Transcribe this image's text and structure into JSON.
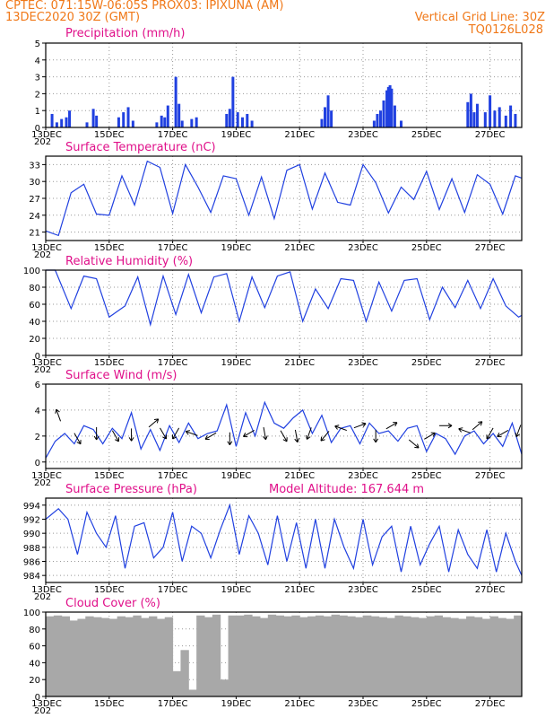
{
  "header": {
    "line1_left": "CPTEC:   071:15W-06:05S   PROX03: IPIXUNA (AM)",
    "line2_left": "13DEC2020 30Z (GMT)",
    "line2_right": "Vertical Grid Line: 30Z",
    "line3_right": "TQ0126L028"
  },
  "x_dates": [
    "13DEC",
    "15DEC",
    "17DEC",
    "19DEC",
    "21DEC",
    "23DEC",
    "25DEC",
    "27DEC"
  ],
  "x_year": "202",
  "colors": {
    "series": "#2040e0",
    "title": "#e0108a",
    "header": "#f07818",
    "bars": "#2040e0",
    "cloud": "#a8a8a8",
    "arrows": "#000000"
  },
  "chart_data": [
    {
      "type": "bar",
      "title": "Precipitation (mm/h)",
      "xlabel": "",
      "ylabel": "",
      "ylim": [
        0,
        5
      ],
      "yticks": [
        0,
        1,
        2,
        3,
        4,
        5
      ],
      "x_range_days": [
        13,
        28
      ],
      "x": [
        13.2,
        13.35,
        13.5,
        13.65,
        13.75,
        14.3,
        14.5,
        14.6,
        15.3,
        15.45,
        15.6,
        15.75,
        16.5,
        16.65,
        16.75,
        16.85,
        17.1,
        17.2,
        17.3,
        17.6,
        17.75,
        18.7,
        18.8,
        18.9,
        19.05,
        19.2,
        19.35,
        19.5,
        21.7,
        21.8,
        21.9,
        22.0,
        23.35,
        23.45,
        23.55,
        23.65,
        23.75,
        23.8,
        23.85,
        23.9,
        24.0,
        24.2,
        26.3,
        26.4,
        26.5,
        26.6,
        26.85,
        27.0,
        27.15,
        27.3,
        27.5,
        27.65,
        27.8
      ],
      "values": [
        0.8,
        0.3,
        0.5,
        0.6,
        1.0,
        0.3,
        1.1,
        0.7,
        0.6,
        0.9,
        1.2,
        0.4,
        0.3,
        0.7,
        0.6,
        1.3,
        3.0,
        1.4,
        0.4,
        0.5,
        0.6,
        0.8,
        1.1,
        3.0,
        0.9,
        0.6,
        0.8,
        0.4,
        0.5,
        1.2,
        1.9,
        1.0,
        0.4,
        0.8,
        1.0,
        1.6,
        2.2,
        2.4,
        2.5,
        2.3,
        1.3,
        0.4,
        1.5,
        2.0,
        0.9,
        1.4,
        0.9,
        1.9,
        1.0,
        1.2,
        0.7,
        1.3,
        0.8
      ]
    },
    {
      "type": "line",
      "title": "Surface Temperature (nC)",
      "xlabel": "",
      "ylabel": "",
      "ylim": [
        19.5,
        34.5
      ],
      "yticks": [
        21,
        24,
        27,
        30,
        33
      ],
      "x_range_days": [
        13,
        28
      ],
      "x": [
        13.0,
        13.4,
        13.8,
        14.2,
        14.6,
        15.0,
        15.4,
        15.8,
        16.2,
        16.6,
        17.0,
        17.4,
        17.8,
        18.2,
        18.6,
        19.0,
        19.4,
        19.8,
        20.2,
        20.6,
        21.0,
        21.4,
        21.8,
        22.2,
        22.6,
        23.0,
        23.4,
        23.8,
        24.2,
        24.6,
        25.0,
        25.4,
        25.8,
        26.2,
        26.6,
        27.0,
        27.4,
        27.8,
        28.0
      ],
      "values": [
        21.2,
        20.4,
        28.0,
        29.5,
        24.2,
        24.0,
        31.0,
        25.8,
        33.6,
        32.5,
        24.3,
        33.0,
        29.0,
        24.5,
        31.0,
        30.5,
        24.0,
        30.8,
        23.4,
        32.0,
        33.0,
        25.1,
        31.5,
        26.3,
        25.8,
        33.0,
        29.8,
        24.4,
        29.0,
        26.8,
        31.8,
        25.0,
        30.5,
        24.5,
        31.2,
        29.5,
        24.2,
        31.0,
        30.6
      ]
    },
    {
      "type": "line",
      "title": "Relative Humidity (%)",
      "xlabel": "",
      "ylabel": "",
      "ylim": [
        0,
        100
      ],
      "yticks": [
        0,
        20,
        40,
        60,
        80,
        100
      ],
      "x_range_days": [
        13,
        28
      ],
      "x": [
        13.0,
        13.3,
        13.8,
        14.2,
        14.6,
        15.0,
        15.5,
        15.9,
        16.3,
        16.7,
        17.1,
        17.5,
        17.9,
        18.3,
        18.7,
        19.1,
        19.5,
        19.9,
        20.3,
        20.7,
        21.1,
        21.5,
        21.9,
        22.3,
        22.7,
        23.1,
        23.5,
        23.9,
        24.3,
        24.7,
        25.1,
        25.5,
        25.9,
        26.3,
        26.7,
        27.1,
        27.5,
        27.9,
        28.0
      ],
      "values": [
        100,
        100,
        55,
        93,
        90,
        45,
        58,
        92,
        36,
        93,
        48,
        95,
        50,
        92,
        96,
        40,
        92,
        56,
        93,
        98,
        40,
        78,
        55,
        90,
        88,
        40,
        86,
        52,
        88,
        90,
        42,
        80,
        56,
        88,
        55,
        90,
        58,
        45,
        47
      ]
    },
    {
      "type": "line",
      "title": "Surface Wind (m/s)",
      "xlabel": "",
      "ylabel": "",
      "ylim": [
        -0.5,
        6
      ],
      "yticks": [
        0,
        2,
        4,
        6
      ],
      "x_range_days": [
        13,
        28
      ],
      "x": [
        13.0,
        13.3,
        13.6,
        13.9,
        14.2,
        14.5,
        14.8,
        15.1,
        15.4,
        15.7,
        16.0,
        16.3,
        16.6,
        16.9,
        17.2,
        17.5,
        17.8,
        18.1,
        18.4,
        18.7,
        19.0,
        19.3,
        19.6,
        19.9,
        20.2,
        20.5,
        20.8,
        21.1,
        21.4,
        21.7,
        22.0,
        22.3,
        22.6,
        22.9,
        23.2,
        23.5,
        23.8,
        24.1,
        24.4,
        24.7,
        25.0,
        25.3,
        25.6,
        25.9,
        26.2,
        26.5,
        26.8,
        27.1,
        27.4,
        27.7,
        28.0
      ],
      "values": [
        0.3,
        1.6,
        2.2,
        1.4,
        2.8,
        2.5,
        1.4,
        2.6,
        1.8,
        3.8,
        1.0,
        2.5,
        0.9,
        2.8,
        1.5,
        3.0,
        1.8,
        2.2,
        2.4,
        4.4,
        1.2,
        3.8,
        2.0,
        4.6,
        3.0,
        2.6,
        3.4,
        4.0,
        2.2,
        3.6,
        1.5,
        2.6,
        2.8,
        1.4,
        3.0,
        2.2,
        2.4,
        1.6,
        2.6,
        2.8,
        0.8,
        2.2,
        1.8,
        0.6,
        2.0,
        2.4,
        1.4,
        2.2,
        1.2,
        3.0,
        0.6
      ],
      "arrows": [
        {
          "x": 13.4,
          "y": 3.6,
          "angle": -110
        },
        {
          "x": 14.0,
          "y": 1.8,
          "angle": 60
        },
        {
          "x": 14.6,
          "y": 2.2,
          "angle": 90
        },
        {
          "x": 15.2,
          "y": 2.0,
          "angle": 60
        },
        {
          "x": 15.7,
          "y": 2.1,
          "angle": 90
        },
        {
          "x": 16.4,
          "y": 3.0,
          "angle": -40
        },
        {
          "x": 16.7,
          "y": 2.2,
          "angle": 60
        },
        {
          "x": 17.1,
          "y": 2.2,
          "angle": 120
        },
        {
          "x": 17.6,
          "y": 2.2,
          "angle": 200
        },
        {
          "x": 18.2,
          "y": 2.0,
          "angle": 150
        },
        {
          "x": 18.8,
          "y": 1.8,
          "angle": 90
        },
        {
          "x": 19.4,
          "y": 2.2,
          "angle": 150
        },
        {
          "x": 19.9,
          "y": 2.2,
          "angle": 80
        },
        {
          "x": 20.5,
          "y": 2.0,
          "angle": 60
        },
        {
          "x": 20.9,
          "y": 2.0,
          "angle": 80
        },
        {
          "x": 21.3,
          "y": 2.2,
          "angle": 110
        },
        {
          "x": 21.8,
          "y": 2.0,
          "angle": 130
        },
        {
          "x": 22.3,
          "y": 2.6,
          "angle": 200
        },
        {
          "x": 22.9,
          "y": 2.8,
          "angle": -20
        },
        {
          "x": 23.4,
          "y": 2.0,
          "angle": 90
        },
        {
          "x": 23.9,
          "y": 2.8,
          "angle": -30
        },
        {
          "x": 24.6,
          "y": 1.4,
          "angle": 40
        },
        {
          "x": 25.1,
          "y": 2.0,
          "angle": -30
        },
        {
          "x": 25.6,
          "y": 2.8,
          "angle": 0
        },
        {
          "x": 26.2,
          "y": 2.4,
          "angle": 200
        },
        {
          "x": 26.6,
          "y": 2.8,
          "angle": -40
        },
        {
          "x": 27.0,
          "y": 2.2,
          "angle": 120
        },
        {
          "x": 27.4,
          "y": 2.2,
          "angle": 150
        },
        {
          "x": 27.9,
          "y": 2.4,
          "angle": 110
        }
      ]
    },
    {
      "type": "line",
      "title": "Surface Pressure (hPa)",
      "annotation": "Model Altitude: 167.644 m",
      "xlabel": "",
      "ylabel": "",
      "ylim": [
        983,
        995
      ],
      "yticks": [
        984,
        986,
        988,
        990,
        992,
        994
      ],
      "x_range_days": [
        13,
        28
      ],
      "x": [
        13.0,
        13.4,
        13.7,
        14.0,
        14.3,
        14.6,
        14.9,
        15.2,
        15.5,
        15.8,
        16.1,
        16.4,
        16.7,
        17.0,
        17.3,
        17.6,
        17.9,
        18.2,
        18.5,
        18.8,
        19.1,
        19.4,
        19.7,
        20.0,
        20.3,
        20.6,
        20.9,
        21.2,
        21.5,
        21.8,
        22.1,
        22.4,
        22.7,
        23.0,
        23.3,
        23.6,
        23.9,
        24.2,
        24.5,
        24.8,
        25.1,
        25.4,
        25.7,
        26.0,
        26.3,
        26.6,
        26.9,
        27.2,
        27.5,
        27.8,
        28.0
      ],
      "values": [
        992,
        993.5,
        992,
        987,
        993,
        990,
        988,
        992.5,
        985,
        991,
        991.5,
        986.5,
        988,
        993,
        986,
        991,
        990,
        986.5,
        990.5,
        994,
        987,
        992.5,
        990,
        985.5,
        992.5,
        986,
        991.5,
        985,
        992,
        985,
        992,
        988,
        985,
        992,
        985.5,
        989.5,
        991,
        984.5,
        991,
        985.5,
        988.5,
        991,
        984.5,
        990.5,
        987,
        985,
        990.5,
        984.5,
        990,
        986,
        984
      ]
    },
    {
      "type": "bar",
      "title": "Cloud Cover (%)",
      "xlabel": "",
      "ylabel": "",
      "ylim": [
        0,
        100
      ],
      "yticks": [
        0,
        20,
        40,
        60,
        80,
        100
      ],
      "x_range_days": [
        13,
        28
      ],
      "x": [
        13.0,
        13.25,
        13.5,
        13.75,
        14.0,
        14.25,
        14.5,
        14.75,
        15.0,
        15.25,
        15.5,
        15.75,
        16.0,
        16.25,
        16.5,
        16.75,
        17.0,
        17.25,
        17.5,
        17.75,
        18.0,
        18.25,
        18.5,
        18.75,
        19.0,
        19.25,
        19.5,
        19.75,
        20.0,
        20.25,
        20.5,
        20.75,
        21.0,
        21.25,
        21.5,
        21.75,
        22.0,
        22.25,
        22.5,
        22.75,
        23.0,
        23.25,
        23.5,
        23.75,
        24.0,
        24.25,
        24.5,
        24.75,
        25.0,
        25.25,
        25.5,
        25.75,
        26.0,
        26.25,
        26.5,
        26.75,
        27.0,
        27.25,
        27.5,
        27.75
      ],
      "values": [
        95,
        96,
        95,
        90,
        92,
        95,
        94,
        93,
        92,
        95,
        94,
        96,
        93,
        95,
        92,
        94,
        30,
        55,
        8,
        96,
        94,
        97,
        20,
        96,
        96,
        97,
        95,
        93,
        97,
        96,
        95,
        96,
        94,
        95,
        96,
        95,
        97,
        96,
        95,
        94,
        96,
        95,
        94,
        93,
        96,
        95,
        94,
        93,
        95,
        96,
        94,
        93,
        92,
        95,
        94,
        92,
        95,
        93,
        92,
        96
      ]
    }
  ]
}
